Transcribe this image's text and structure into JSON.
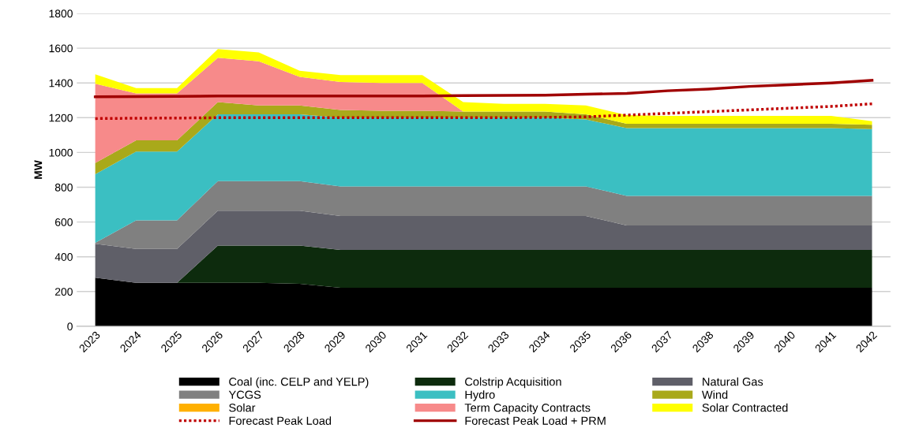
{
  "chart_data": {
    "type": "area",
    "stacked": true,
    "ylabel": "MW",
    "categories": [
      "2023",
      "2024",
      "2025",
      "2026",
      "2027",
      "2028",
      "2029",
      "2030",
      "2031",
      "2032",
      "2033",
      "2034",
      "2035",
      "2036",
      "2037",
      "2038",
      "2039",
      "2040",
      "2041",
      "2042"
    ],
    "ylim": [
      0,
      1800
    ],
    "yticks": [
      0,
      200,
      400,
      600,
      800,
      1000,
      1200,
      1400,
      1600,
      1800
    ],
    "grid": "y",
    "legend": "bottom",
    "series": [
      {
        "name": "Coal (inc. CELP and YELP)",
        "color": "#000000",
        "values": [
          280,
          250,
          250,
          250,
          250,
          245,
          222,
          222,
          222,
          222,
          222,
          222,
          222,
          222,
          222,
          222,
          222,
          222,
          222,
          222
        ]
      },
      {
        "name": "Colstrip Acquisition",
        "color": "#0d2b0d",
        "values": [
          0,
          0,
          0,
          215,
          215,
          220,
          218,
          218,
          218,
          218,
          218,
          218,
          218,
          218,
          218,
          218,
          218,
          218,
          218,
          218
        ]
      },
      {
        "name": "Natural Gas",
        "color": "#5f5f68",
        "values": [
          195,
          195,
          195,
          200,
          200,
          200,
          195,
          195,
          195,
          195,
          195,
          195,
          195,
          140,
          140,
          140,
          140,
          140,
          140,
          140
        ]
      },
      {
        "name": "YCGS",
        "color": "#808080",
        "values": [
          5,
          165,
          165,
          170,
          170,
          170,
          170,
          170,
          170,
          170,
          170,
          170,
          170,
          170,
          170,
          170,
          170,
          170,
          170,
          170
        ]
      },
      {
        "name": "Hydro",
        "color": "#3bbfc2",
        "values": [
          395,
          395,
          395,
          385,
          385,
          385,
          395,
          395,
          395,
          395,
          395,
          395,
          385,
          390,
          390,
          390,
          390,
          390,
          390,
          385
        ]
      },
      {
        "name": "Wind",
        "color": "#a9a91a",
        "values": [
          65,
          65,
          65,
          70,
          50,
          50,
          45,
          40,
          40,
          35,
          35,
          35,
          30,
          25,
          25,
          25,
          25,
          25,
          25,
          25
        ]
      },
      {
        "name": "Solar",
        "color": "#ffb000",
        "values": [
          null,
          null,
          null,
          null,
          null,
          null,
          null,
          null,
          null,
          null,
          null,
          null,
          null,
          null,
          null,
          null,
          null,
          null,
          null,
          null
        ]
      },
      {
        "name": "Term Capacity Contracts",
        "color": "#f78a8a",
        "values": [
          455,
          270,
          270,
          255,
          255,
          165,
          160,
          160,
          160,
          0,
          0,
          0,
          0,
          0,
          0,
          0,
          0,
          0,
          0,
          0
        ]
      },
      {
        "name": "Solar Contracted",
        "color": "#ffff00",
        "values": [
          55,
          30,
          30,
          50,
          50,
          35,
          40,
          45,
          45,
          55,
          45,
          45,
          50,
          50,
          45,
          45,
          45,
          45,
          45,
          20
        ]
      },
      {
        "name": "Forecast Peak Load",
        "type": "line",
        "line_style": "dotted",
        "color": "#c00000",
        "values": [
          1195,
          1197,
          1198,
          1200,
          1200,
          1200,
          1200,
          1200,
          1200,
          1200,
          1200,
          1202,
          1205,
          1215,
          1225,
          1235,
          1245,
          1255,
          1265,
          1280
        ]
      },
      {
        "name": "Forecast Peak Load + PRM",
        "type": "line",
        "line_style": "solid",
        "color": "#a00000",
        "values": [
          1320,
          1322,
          1323,
          1325,
          1325,
          1325,
          1325,
          1325,
          1325,
          1327,
          1328,
          1330,
          1335,
          1340,
          1355,
          1365,
          1380,
          1390,
          1400,
          1415
        ]
      }
    ]
  }
}
